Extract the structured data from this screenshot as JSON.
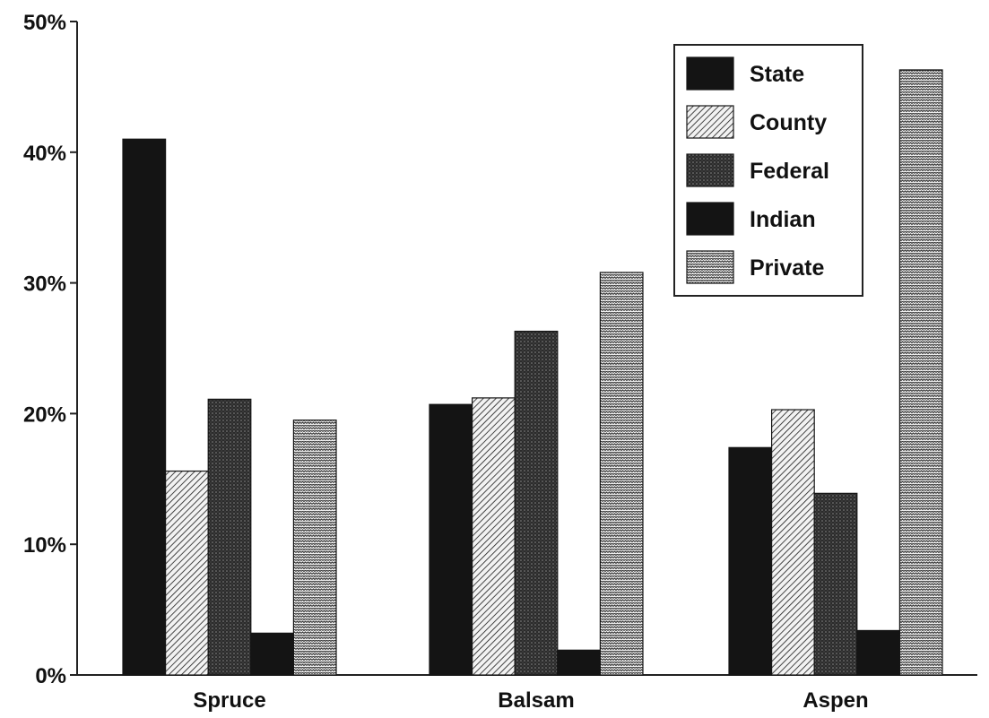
{
  "chart_data": {
    "type": "bar",
    "title": "",
    "xlabel": "",
    "ylabel": "",
    "categories": [
      "Spruce",
      "Balsam",
      "Aspen"
    ],
    "series": [
      {
        "name": "State",
        "pattern": "solid",
        "values": [
          41,
          20.7,
          17.4
        ]
      },
      {
        "name": "County",
        "pattern": "diagonal",
        "values": [
          15.6,
          21.2,
          20.3
        ]
      },
      {
        "name": "Federal",
        "pattern": "dark-dots",
        "values": [
          21.1,
          26.3,
          13.9
        ]
      },
      {
        "name": "Indian",
        "pattern": "solid",
        "values": [
          3.2,
          1.9,
          3.4
        ]
      },
      {
        "name": "Private",
        "pattern": "light-weave",
        "values": [
          19.5,
          30.8,
          46.3
        ]
      }
    ],
    "ylim": [
      0,
      50
    ],
    "yticks": [
      "0%",
      "10%",
      "20%",
      "30%",
      "40%",
      "50%"
    ],
    "grid": false,
    "legend_position": "top-right",
    "colors": {
      "dark": "#141414",
      "axis": "#222222",
      "background": "#ffffff"
    }
  }
}
